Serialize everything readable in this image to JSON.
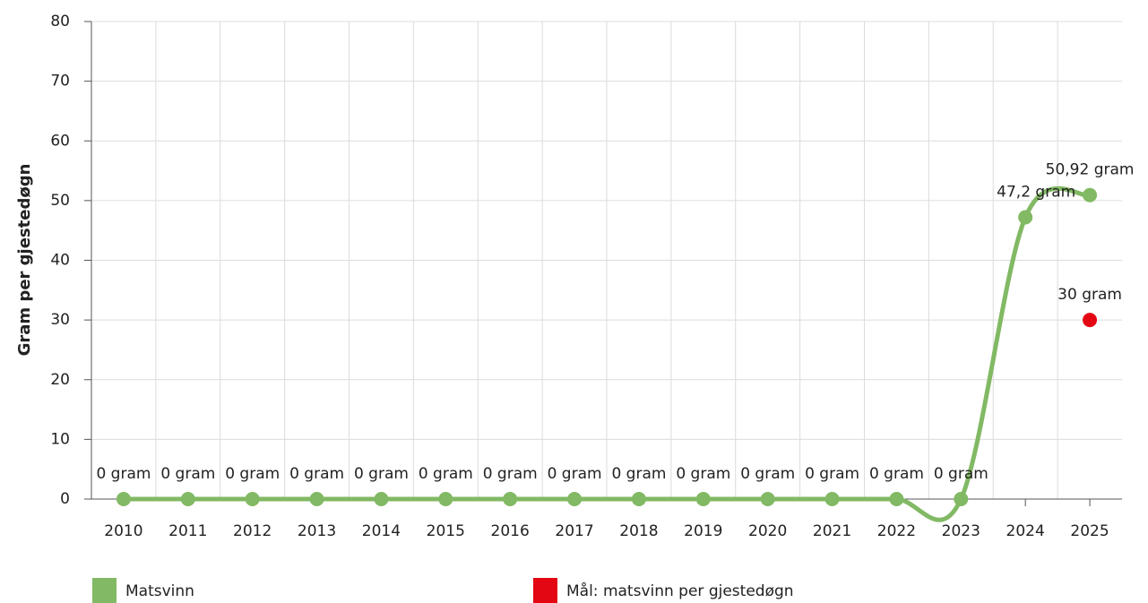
{
  "chart_data": {
    "type": "line",
    "y_label": "Gram per gjestedøgn",
    "categories": [
      "2010",
      "2011",
      "2012",
      "2013",
      "2014",
      "2015",
      "2016",
      "2017",
      "2018",
      "2019",
      "2020",
      "2021",
      "2022",
      "2023",
      "2024",
      "2025"
    ],
    "series": [
      {
        "name": "Matsvinn",
        "color": "#82b964",
        "line": true,
        "values": [
          0,
          0,
          0,
          0,
          0,
          0,
          0,
          0,
          0,
          0,
          0,
          0,
          0,
          0,
          47.2,
          50.92
        ],
        "value_labels": [
          "0 gram",
          "0 gram",
          "0 gram",
          "0 gram",
          "0 gram",
          "0 gram",
          "0 gram",
          "0 gram",
          "0 gram",
          "0 gram",
          "0 gram",
          "0 gram",
          "0 gram",
          "0 gram",
          "47,2 gram",
          "50,92 gram"
        ]
      },
      {
        "name": "Mål: matsvinn per gjestedøgn",
        "color": "#e30613",
        "line": false,
        "values": [
          null,
          null,
          null,
          null,
          null,
          null,
          null,
          null,
          null,
          null,
          null,
          null,
          null,
          null,
          null,
          30
        ],
        "value_labels": [
          null,
          null,
          null,
          null,
          null,
          null,
          null,
          null,
          null,
          null,
          null,
          null,
          null,
          null,
          null,
          "30 gram"
        ]
      }
    ],
    "ylim": [
      0,
      80
    ],
    "yticks": [
      0,
      10,
      20,
      30,
      40,
      50,
      60,
      70,
      80
    ],
    "grid": true
  }
}
